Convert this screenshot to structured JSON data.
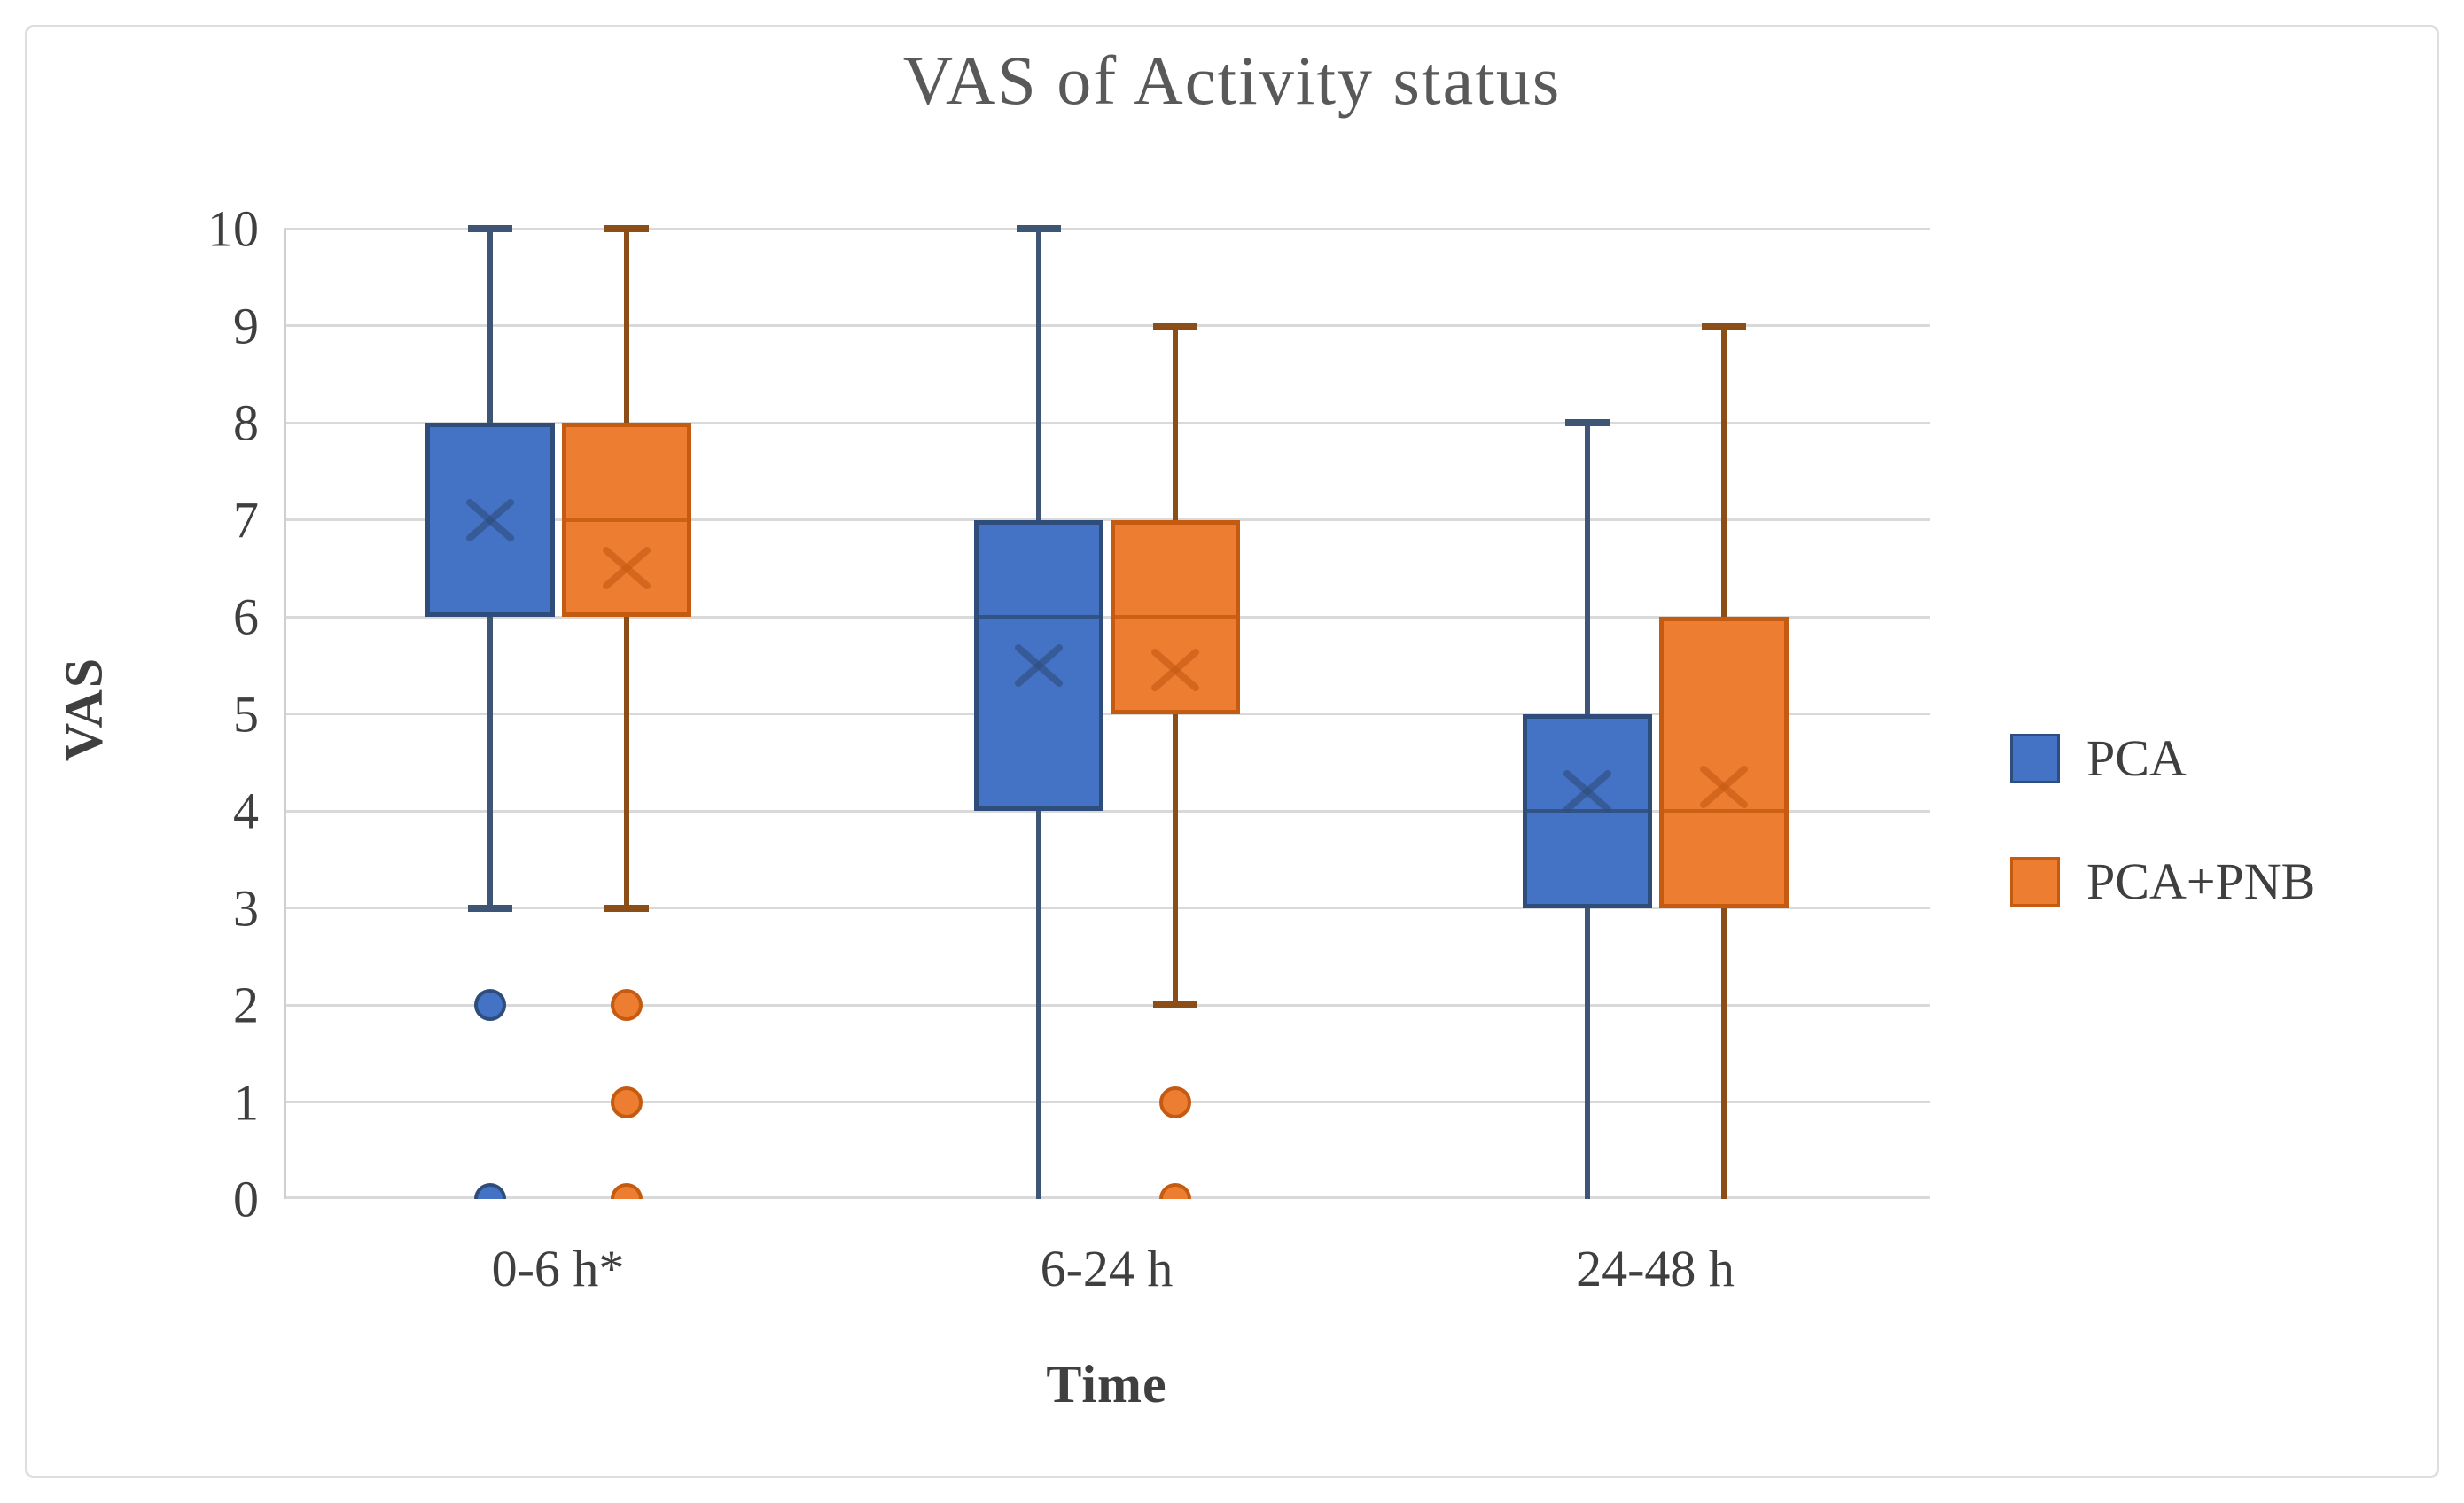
{
  "chart_data": {
    "type": "boxplot",
    "title": "VAS of Activity status",
    "xlabel": "Time",
    "ylabel": "VAS",
    "ylim": [
      0,
      10
    ],
    "yticks": [
      0,
      1,
      2,
      3,
      4,
      5,
      6,
      7,
      8,
      9,
      10
    ],
    "categories": [
      "0-6 h*",
      "6-24 h",
      "24-48 h"
    ],
    "grid": "horizontal",
    "legend_position": "right",
    "colors": {
      "gridline": "#d9d9d9",
      "axis_line": "#cfcfcf",
      "title_text": "#595959",
      "axis_text": "#3f3f3f"
    },
    "series": [
      {
        "name": "PCA",
        "fill": "#4472c4",
        "stroke": "#2e4d7b",
        "whisker_color": "#3e5576",
        "boxes": [
          {
            "category": "0-6 h*",
            "whisker_low": 3,
            "q1": 6,
            "median": null,
            "q3": 8,
            "whisker_high": 10,
            "mean": 7.0,
            "outliers": [
              2,
              0
            ]
          },
          {
            "category": "6-24 h",
            "whisker_low": 0,
            "q1": 4,
            "median": 6,
            "q3": 7,
            "whisker_high": 10,
            "mean": 5.5,
            "outliers": []
          },
          {
            "category": "24-48 h",
            "whisker_low": 0,
            "q1": 3,
            "median": 4,
            "q3": 5,
            "whisker_high": 8,
            "mean": 4.2,
            "outliers": []
          }
        ]
      },
      {
        "name": "PCA+PNB",
        "fill": "#ed7d31",
        "stroke": "#c55a11",
        "whisker_color": "#8c4e17",
        "boxes": [
          {
            "category": "0-6 h*",
            "whisker_low": 3,
            "q1": 6,
            "median": 7,
            "q3": 8,
            "whisker_high": 10,
            "mean": 6.5,
            "outliers": [
              2,
              1,
              0
            ]
          },
          {
            "category": "6-24 h",
            "whisker_low": 2,
            "q1": 5,
            "median": 6,
            "q3": 7,
            "whisker_high": 9,
            "mean": 5.45,
            "outliers": [
              1,
              0
            ]
          },
          {
            "category": "24-48 h",
            "whisker_low": 0,
            "q1": 3,
            "median": 4,
            "q3": 6,
            "whisker_high": 9,
            "mean": 4.25,
            "outliers": []
          }
        ]
      }
    ]
  }
}
